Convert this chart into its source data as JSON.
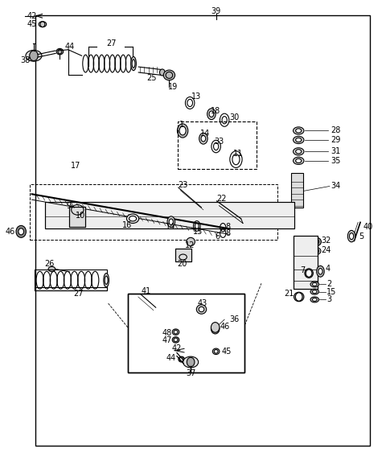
{
  "bg_color": "#ffffff",
  "line_color": "#000000",
  "part_color": "#555555",
  "label_fontsize": 7,
  "fig_width": 4.8,
  "fig_height": 5.78,
  "dpi": 100
}
